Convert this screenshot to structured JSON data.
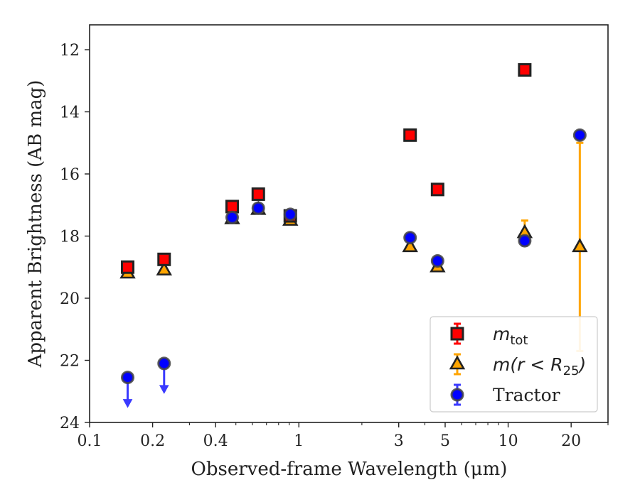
{
  "chart_data": {
    "type": "scatter",
    "title": "",
    "xlabel": "Observed-frame Wavelength (μm)",
    "ylabel": "Apparent Brightness (AB mag)",
    "xscale": "log",
    "xlim": [
      0.1,
      30
    ],
    "ylim": [
      24,
      11.2
    ],
    "y_inverted": true,
    "xticks": [
      {
        "value": 0.1,
        "label": "0.1"
      },
      {
        "value": 0.2,
        "label": "0.2"
      },
      {
        "value": 0.4,
        "label": "0.4"
      },
      {
        "value": 1,
        "label": "1"
      },
      {
        "value": 3,
        "label": "3"
      },
      {
        "value": 5,
        "label": "5"
      },
      {
        "value": 10,
        "label": "10"
      },
      {
        "value": 20,
        "label": "20"
      }
    ],
    "yticks": [
      {
        "value": 12,
        "label": "12"
      },
      {
        "value": 14,
        "label": "14"
      },
      {
        "value": 16,
        "label": "16"
      },
      {
        "value": 18,
        "label": "18"
      },
      {
        "value": 20,
        "label": "20"
      },
      {
        "value": 22,
        "label": "22"
      },
      {
        "value": 24,
        "label": "24"
      }
    ],
    "grid": false,
    "legend": "lower-right",
    "series": [
      {
        "name": "m_tot",
        "legend_main": "m",
        "legend_sub": "tot",
        "marker": "square",
        "color": "#ff0000",
        "edge": "#222222",
        "points": [
          {
            "x": 0.152,
            "y": 19.0
          },
          {
            "x": 0.227,
            "y": 18.75
          },
          {
            "x": 0.48,
            "y": 17.05
          },
          {
            "x": 0.64,
            "y": 16.65
          },
          {
            "x": 0.91,
            "y": 17.35
          },
          {
            "x": 3.4,
            "y": 14.75
          },
          {
            "x": 4.6,
            "y": 16.5
          },
          {
            "x": 12.0,
            "y": 12.65
          }
        ]
      },
      {
        "name": "m(r < R25)",
        "legend_main": "m(r < R",
        "legend_sub": "25",
        "legend_tail": ")",
        "marker": "triangle",
        "color": "#ffa500",
        "edge": "#222222",
        "points": [
          {
            "x": 0.152,
            "y": 19.2
          },
          {
            "x": 0.227,
            "y": 19.1
          },
          {
            "x": 0.48,
            "y": 17.45
          },
          {
            "x": 0.64,
            "y": 17.15
          },
          {
            "x": 0.91,
            "y": 17.5
          },
          {
            "x": 3.4,
            "y": 18.35
          },
          {
            "x": 4.6,
            "y": 19.0
          },
          {
            "x": 12.0,
            "y": 17.9,
            "err_lo": 0.4,
            "err_hi": 0.4
          },
          {
            "x": 22.0,
            "y": 18.35,
            "err_lo": 3.35,
            "err_hi": 3.35
          }
        ]
      },
      {
        "name": "Tractor",
        "legend_main": "Tractor",
        "marker": "circle",
        "color": "#0000ff",
        "edge": "#444444",
        "points": [
          {
            "x": 0.152,
            "y": 22.55,
            "upper_limit": true
          },
          {
            "x": 0.227,
            "y": 22.1,
            "upper_limit": true
          },
          {
            "x": 0.48,
            "y": 17.4
          },
          {
            "x": 0.64,
            "y": 17.1
          },
          {
            "x": 0.91,
            "y": 17.3
          },
          {
            "x": 3.4,
            "y": 18.05
          },
          {
            "x": 4.6,
            "y": 18.8
          },
          {
            "x": 12.0,
            "y": 18.15,
            "err_lo": 0.15,
            "err_hi": 0.15
          },
          {
            "x": 22.0,
            "y": 14.75
          }
        ]
      }
    ]
  }
}
